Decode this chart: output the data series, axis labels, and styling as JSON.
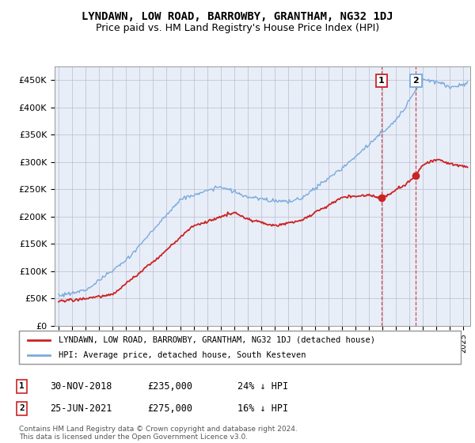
{
  "title": "LYNDAWN, LOW ROAD, BARROWBY, GRANTHAM, NG32 1DJ",
  "subtitle": "Price paid vs. HM Land Registry's House Price Index (HPI)",
  "ylabel_ticks": [
    "£0",
    "£50K",
    "£100K",
    "£150K",
    "£200K",
    "£250K",
    "£300K",
    "£350K",
    "£400K",
    "£450K"
  ],
  "ytick_values": [
    0,
    50000,
    100000,
    150000,
    200000,
    250000,
    300000,
    350000,
    400000,
    450000
  ],
  "ylim": [
    0,
    475000
  ],
  "xlim_start": 1994.7,
  "xlim_end": 2025.5,
  "sale1_date": 2018.92,
  "sale1_price": 235000,
  "sale2_date": 2021.48,
  "sale2_price": 275000,
  "hpi_color": "#7aaadd",
  "price_color": "#cc2222",
  "background_color": "#e8eef8",
  "legend_label_red": "LYNDAWN, LOW ROAD, BARROWBY, GRANTHAM, NG32 1DJ (detached house)",
  "legend_label_blue": "HPI: Average price, detached house, South Kesteven",
  "ann1_date": "30-NOV-2018",
  "ann1_price": "£235,000",
  "ann1_hpi": "24% ↓ HPI",
  "ann2_date": "25-JUN-2021",
  "ann2_price": "£275,000",
  "ann2_hpi": "16% ↓ HPI",
  "footer": "Contains HM Land Registry data © Crown copyright and database right 2024.\nThis data is licensed under the Open Government Licence v3.0.",
  "title_fontsize": 10,
  "subtitle_fontsize": 9,
  "tick_fontsize": 8
}
